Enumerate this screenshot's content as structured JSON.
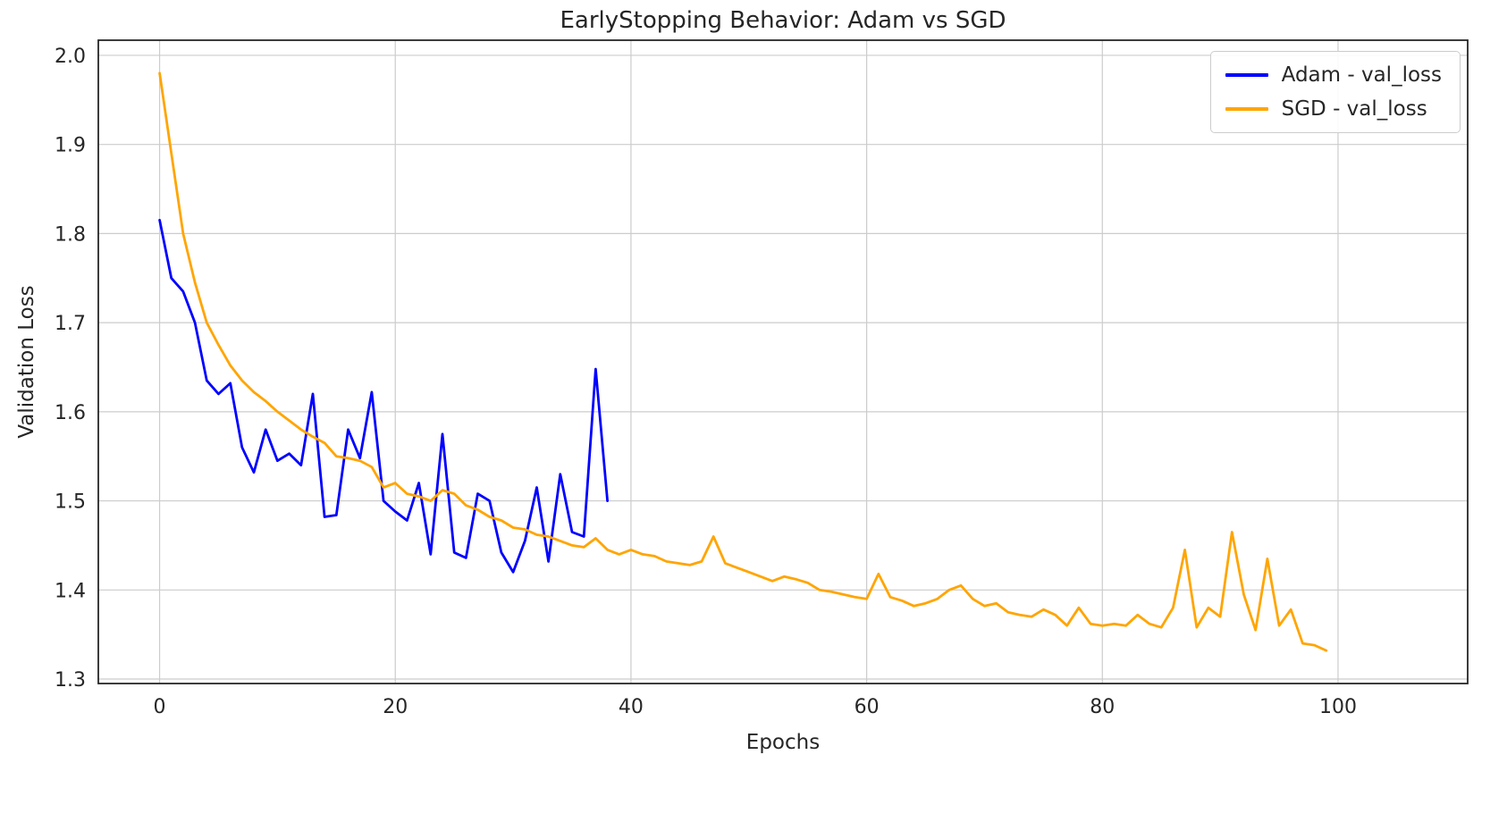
{
  "figure": {
    "background": "#ffffff",
    "spine_color": "#262626",
    "tick_label_color": "#262626"
  },
  "chart_data": {
    "type": "line",
    "title": "EarlyStopping Behavior: Adam vs SGD",
    "xlabel": "Epochs",
    "ylabel": "Validation Loss",
    "xlim": [
      -5.2,
      111
    ],
    "ylim": [
      1.295,
      2.017
    ],
    "x_ticks": [
      0,
      20,
      40,
      60,
      80,
      100
    ],
    "y_ticks": [
      1.3,
      1.4,
      1.5,
      1.6,
      1.7,
      1.8,
      1.9,
      2.0
    ],
    "grid": true,
    "grid_color": "#cccccc",
    "legend_position": "upper right",
    "series": [
      {
        "name": "Adam - val_loss",
        "color": "#0000ff",
        "x": [
          0,
          1,
          2,
          3,
          4,
          5,
          6,
          7,
          8,
          9,
          10,
          11,
          12,
          13,
          14,
          15,
          16,
          17,
          18,
          19,
          20,
          21,
          22,
          23,
          24,
          25,
          26,
          27,
          28,
          29,
          30,
          31,
          32,
          33,
          34,
          35,
          36,
          37,
          38
        ],
        "values": [
          1.815,
          1.75,
          1.735,
          1.7,
          1.635,
          1.62,
          1.632,
          1.56,
          1.532,
          1.58,
          1.545,
          1.553,
          1.54,
          1.62,
          1.482,
          1.484,
          1.58,
          1.548,
          1.622,
          1.5,
          1.488,
          1.478,
          1.52,
          1.44,
          1.575,
          1.442,
          1.436,
          1.508,
          1.5,
          1.442,
          1.42,
          1.455,
          1.515,
          1.432,
          1.53,
          1.465,
          1.46,
          1.648,
          1.5
        ]
      },
      {
        "name": "SGD - val_loss",
        "color": "#ffa500",
        "x": [
          0,
          1,
          2,
          3,
          4,
          5,
          6,
          7,
          8,
          9,
          10,
          11,
          12,
          13,
          14,
          15,
          16,
          17,
          18,
          19,
          20,
          21,
          22,
          23,
          24,
          25,
          26,
          27,
          28,
          29,
          30,
          31,
          32,
          33,
          34,
          35,
          36,
          37,
          38,
          39,
          40,
          41,
          42,
          43,
          44,
          45,
          46,
          47,
          48,
          49,
          50,
          51,
          52,
          53,
          54,
          55,
          56,
          57,
          58,
          59,
          60,
          61,
          62,
          63,
          64,
          65,
          66,
          67,
          68,
          69,
          70,
          71,
          72,
          73,
          74,
          75,
          76,
          77,
          78,
          79,
          80,
          81,
          82,
          83,
          84,
          85,
          86,
          87,
          88,
          89,
          90,
          91,
          92,
          93,
          94,
          95,
          96,
          97,
          98,
          99
        ],
        "values": [
          1.98,
          1.89,
          1.8,
          1.745,
          1.7,
          1.675,
          1.652,
          1.635,
          1.622,
          1.612,
          1.6,
          1.59,
          1.58,
          1.572,
          1.565,
          1.55,
          1.548,
          1.545,
          1.538,
          1.515,
          1.52,
          1.508,
          1.505,
          1.5,
          1.512,
          1.508,
          1.495,
          1.49,
          1.482,
          1.478,
          1.47,
          1.468,
          1.462,
          1.46,
          1.455,
          1.45,
          1.448,
          1.458,
          1.445,
          1.44,
          1.445,
          1.44,
          1.438,
          1.432,
          1.43,
          1.428,
          1.432,
          1.46,
          1.43,
          1.425,
          1.42,
          1.415,
          1.41,
          1.415,
          1.412,
          1.408,
          1.4,
          1.398,
          1.395,
          1.392,
          1.39,
          1.418,
          1.392,
          1.388,
          1.382,
          1.385,
          1.39,
          1.4,
          1.405,
          1.39,
          1.382,
          1.385,
          1.375,
          1.372,
          1.37,
          1.378,
          1.372,
          1.36,
          1.38,
          1.362,
          1.36,
          1.362,
          1.36,
          1.372,
          1.362,
          1.358,
          1.38,
          1.445,
          1.358,
          1.38,
          1.37,
          1.465,
          1.395,
          1.355,
          1.435,
          1.36,
          1.378,
          1.34,
          1.338,
          1.332
        ]
      }
    ]
  }
}
